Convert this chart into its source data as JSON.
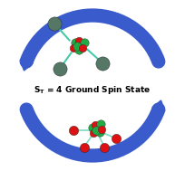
{
  "title_text": "S",
  "title_sub": "T",
  "title_rest": " = 4 Ground Spin State",
  "bg_color": "#ffffff",
  "arrow_color": "#3a5bcc",
  "ni_color": "#22aa44",
  "o_color": "#dd1111",
  "grey_color": "#557766",
  "bond_color_orange": "#ee8800",
  "bond_color_cyan": "#44ccaa",
  "figsize": [
    2.04,
    1.89
  ],
  "dpi": 100
}
